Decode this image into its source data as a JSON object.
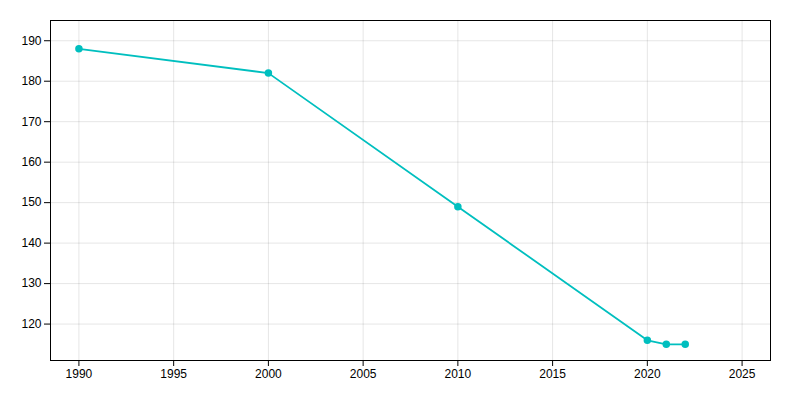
{
  "chart_data": {
    "type": "line",
    "x": [
      1990,
      2000,
      2010,
      2020,
      2021,
      2022
    ],
    "values": [
      188,
      182,
      149,
      116,
      115,
      115
    ],
    "color": "#00BFBF",
    "marker": "circle",
    "xlim": [
      1988.5,
      2026.5
    ],
    "ylim": [
      111,
      195
    ],
    "xticks": [
      1990,
      1995,
      2000,
      2005,
      2010,
      2015,
      2020,
      2025
    ],
    "yticks": [
      120,
      130,
      140,
      150,
      160,
      170,
      180,
      190
    ],
    "grid": true
  }
}
